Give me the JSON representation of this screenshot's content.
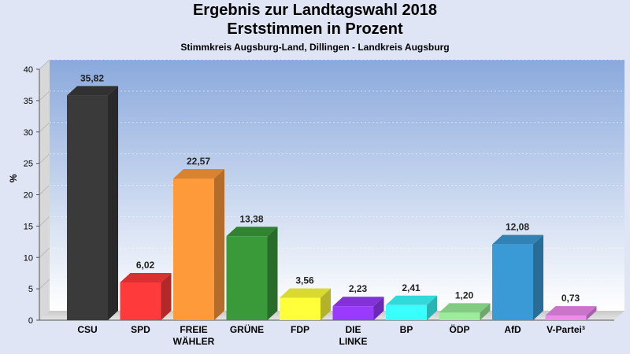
{
  "chart_data": {
    "type": "bar",
    "title": "Ergebnis zur Landtagswahl 2018",
    "subtitle": "Erststimmen in Prozent",
    "caption": "Stimmkreis Augsburg-Land, Dillingen - Landkreis Augsburg",
    "ylabel": "%",
    "xlabel": "",
    "ylim": [
      0,
      40
    ],
    "yticks": [
      "0",
      "5",
      "10",
      "15",
      "20",
      "25",
      "30",
      "35",
      "40"
    ],
    "grid": true,
    "categories": [
      "CSU",
      "SPD",
      "FREIE\nWÄHLER",
      "GRÜNE",
      "FDP",
      "DIE\nLINKE",
      "BP",
      "ÖDP",
      "AfD",
      "V-Partei³"
    ],
    "values": [
      35.82,
      6.02,
      22.57,
      13.38,
      3.56,
      2.23,
      2.41,
      1.2,
      12.08,
      0.73
    ],
    "value_labels": [
      "35,82",
      "6,02",
      "22,57",
      "13,38",
      "3,56",
      "2,23",
      "2,41",
      "1,20",
      "12,08",
      "0,73"
    ],
    "colors": [
      "#3a3a3a",
      "#ff3a3a",
      "#ff9a3a",
      "#3a9a3a",
      "#ffff3a",
      "#9a3aff",
      "#3affff",
      "#9aee9a",
      "#3a9ad6",
      "#ee8aee"
    ]
  }
}
